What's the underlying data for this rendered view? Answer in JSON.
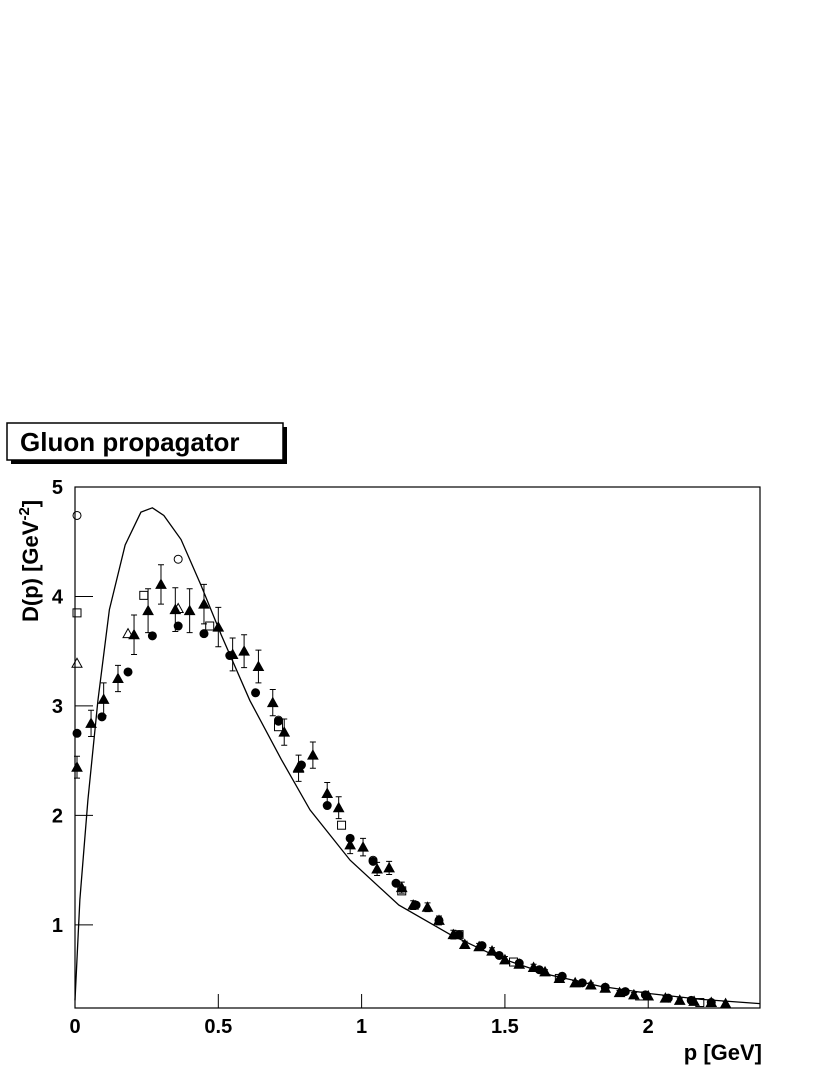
{
  "chart_data": {
    "type": "scatter",
    "title": "Gluon propagator",
    "xlabel": "p [GeV]",
    "ylabel": [
      "D(p) [GeV",
      "-2",
      "]"
    ],
    "xlim": [
      0,
      2.39
    ],
    "ylim": [
      0.24,
      5
    ],
    "xticks": [
      0,
      0.5,
      1,
      1.5,
      2
    ],
    "yticks": [
      1,
      2,
      3,
      4,
      5
    ],
    "series": [
      {
        "marker": "triangle-filled",
        "color": "#000000",
        "x": [
          0.007,
          0.056,
          0.1,
          0.15,
          0.206,
          0.255,
          0.3,
          0.35,
          0.4,
          0.45,
          0.5,
          0.55,
          0.59,
          0.64,
          0.69,
          0.73,
          0.78,
          0.83,
          0.88,
          0.92,
          0.96,
          1.005,
          1.054,
          1.096,
          1.14,
          1.18,
          1.23,
          1.27,
          1.32,
          1.36,
          1.41,
          1.455,
          1.5,
          1.55,
          1.6,
          1.64,
          1.69,
          1.745,
          1.8,
          1.85,
          1.9,
          1.95,
          2.0,
          2.06,
          2.11,
          2.16,
          2.22,
          2.27
        ],
        "values": [
          2.44,
          2.84,
          3.06,
          3.25,
          3.65,
          3.87,
          4.11,
          3.88,
          3.87,
          3.93,
          3.72,
          3.47,
          3.5,
          3.36,
          3.03,
          2.76,
          2.43,
          2.55,
          2.2,
          2.07,
          1.73,
          1.71,
          1.51,
          1.52,
          1.34,
          1.18,
          1.16,
          1.04,
          0.91,
          0.82,
          0.8,
          0.76,
          0.68,
          0.64,
          0.61,
          0.57,
          0.51,
          0.47,
          0.45,
          0.42,
          0.38,
          0.36,
          0.35,
          0.33,
          0.31,
          0.3,
          0.29,
          0.28
        ],
        "errors": [
          0.1,
          0.12,
          0.15,
          0.12,
          0.18,
          0.2,
          0.18,
          0.2,
          0.2,
          0.18,
          0.18,
          0.15,
          0.15,
          0.15,
          0.12,
          0.12,
          0.12,
          0.12,
          0.1,
          0.1,
          0.08,
          0.08,
          0.06,
          0.06,
          0.05,
          0.04,
          0.04,
          0.04,
          0.04,
          0.03,
          0.03,
          0.03,
          0.03,
          0.03,
          0.03,
          0.02,
          0.02,
          0.02,
          0.02,
          0.02,
          0.02,
          0.02,
          0.02,
          0.02,
          0.02,
          0.02,
          0.02,
          0.02
        ]
      },
      {
        "marker": "circle-filled",
        "color": "#000000",
        "x": [
          0.007,
          0.094,
          0.185,
          0.27,
          0.36,
          0.45,
          0.54,
          0.63,
          0.71,
          0.79,
          0.88,
          0.96,
          1.04,
          1.12,
          1.19,
          1.27,
          1.34,
          1.42,
          1.48,
          1.55,
          1.62,
          1.7,
          1.77,
          1.85,
          1.92,
          1.99,
          2.07,
          2.15,
          2.22
        ],
        "values": [
          2.75,
          2.9,
          3.31,
          3.64,
          3.73,
          3.66,
          3.46,
          3.12,
          2.86,
          2.46,
          2.09,
          1.79,
          1.58,
          1.38,
          1.18,
          1.04,
          0.91,
          0.81,
          0.72,
          0.65,
          0.59,
          0.53,
          0.47,
          0.43,
          0.39,
          0.36,
          0.33,
          0.31,
          0.29
        ]
      },
      {
        "marker": "circle-open",
        "color": "#000000",
        "x": [
          0.007,
          0.36,
          0.71,
          1.04
        ],
        "values": [
          4.74,
          4.34,
          2.87,
          1.59
        ]
      },
      {
        "marker": "square-open",
        "color": "#000000",
        "x": [
          0.007,
          0.24,
          0.47,
          0.71,
          0.93,
          1.14,
          1.34,
          1.53,
          1.69,
          1.97,
          2.18
        ],
        "values": [
          3.85,
          4.01,
          3.73,
          2.81,
          1.91,
          1.31,
          0.91,
          0.66,
          0.51,
          0.35,
          0.29
        ]
      },
      {
        "marker": "triangle-open",
        "color": "#000000",
        "x": [
          0.007,
          0.185,
          0.36,
          0.78
        ],
        "values": [
          3.39,
          3.66,
          3.89,
          2.44
        ]
      },
      {
        "marker": "none",
        "line": true,
        "color": "#000000",
        "x": [
          0,
          0.017,
          0.045,
          0.08,
          0.12,
          0.175,
          0.23,
          0.27,
          0.31,
          0.37,
          0.44,
          0.51,
          0.61,
          0.72,
          0.82,
          0.96,
          1.13,
          1.31,
          1.48,
          1.66,
          1.83,
          2.01,
          2.18,
          2.39
        ],
        "values": [
          0.31,
          1.23,
          2.14,
          3.05,
          3.88,
          4.47,
          4.77,
          4.81,
          4.74,
          4.52,
          4.1,
          3.65,
          3.05,
          2.51,
          2.05,
          1.59,
          1.18,
          0.91,
          0.7,
          0.54,
          0.44,
          0.37,
          0.32,
          0.28
        ]
      }
    ]
  }
}
